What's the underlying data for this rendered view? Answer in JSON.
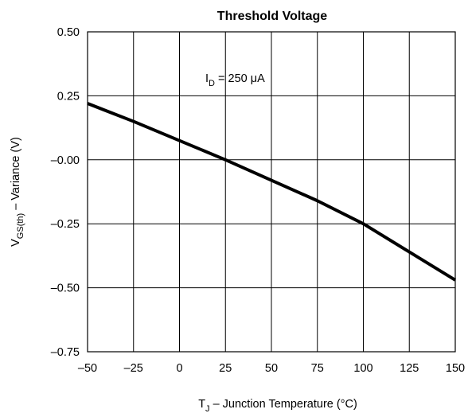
{
  "chart_data": {
    "type": "line",
    "title": "Threshold Voltage",
    "annotation": {
      "main": "I",
      "sub": "D",
      "rest": " = 250 μA"
    },
    "xlabel": {
      "main": "T",
      "sub": "J",
      "rest": " – Junction Temperature (°C)"
    },
    "ylabel": {
      "main": "V",
      "sub": "GS(th)",
      "rest": " – Variance (V)"
    },
    "xlim": [
      -50,
      150
    ],
    "ylim": [
      -0.75,
      0.5
    ],
    "grid": true,
    "x_ticks": [
      -50,
      -25,
      0,
      25,
      50,
      75,
      100,
      125,
      150
    ],
    "x_tick_labels": [
      "–50",
      "–25",
      "0",
      "25",
      "50",
      "75",
      "100",
      "125",
      "150"
    ],
    "y_ticks": [
      0.5,
      0.25,
      0,
      -0.25,
      -0.5,
      -0.75
    ],
    "y_tick_labels": [
      "0.50",
      "0.25",
      "–0.00",
      "–0.25",
      "–0.50",
      "–0.75"
    ],
    "series": [
      {
        "x": [
          -50,
          -25,
          0,
          25,
          50,
          75,
          100,
          125,
          150
        ],
        "y": [
          0.22,
          0.15,
          0.075,
          0.0,
          -0.08,
          -0.16,
          -0.25,
          -0.36,
          -0.47
        ],
        "color": "#000000"
      }
    ]
  }
}
